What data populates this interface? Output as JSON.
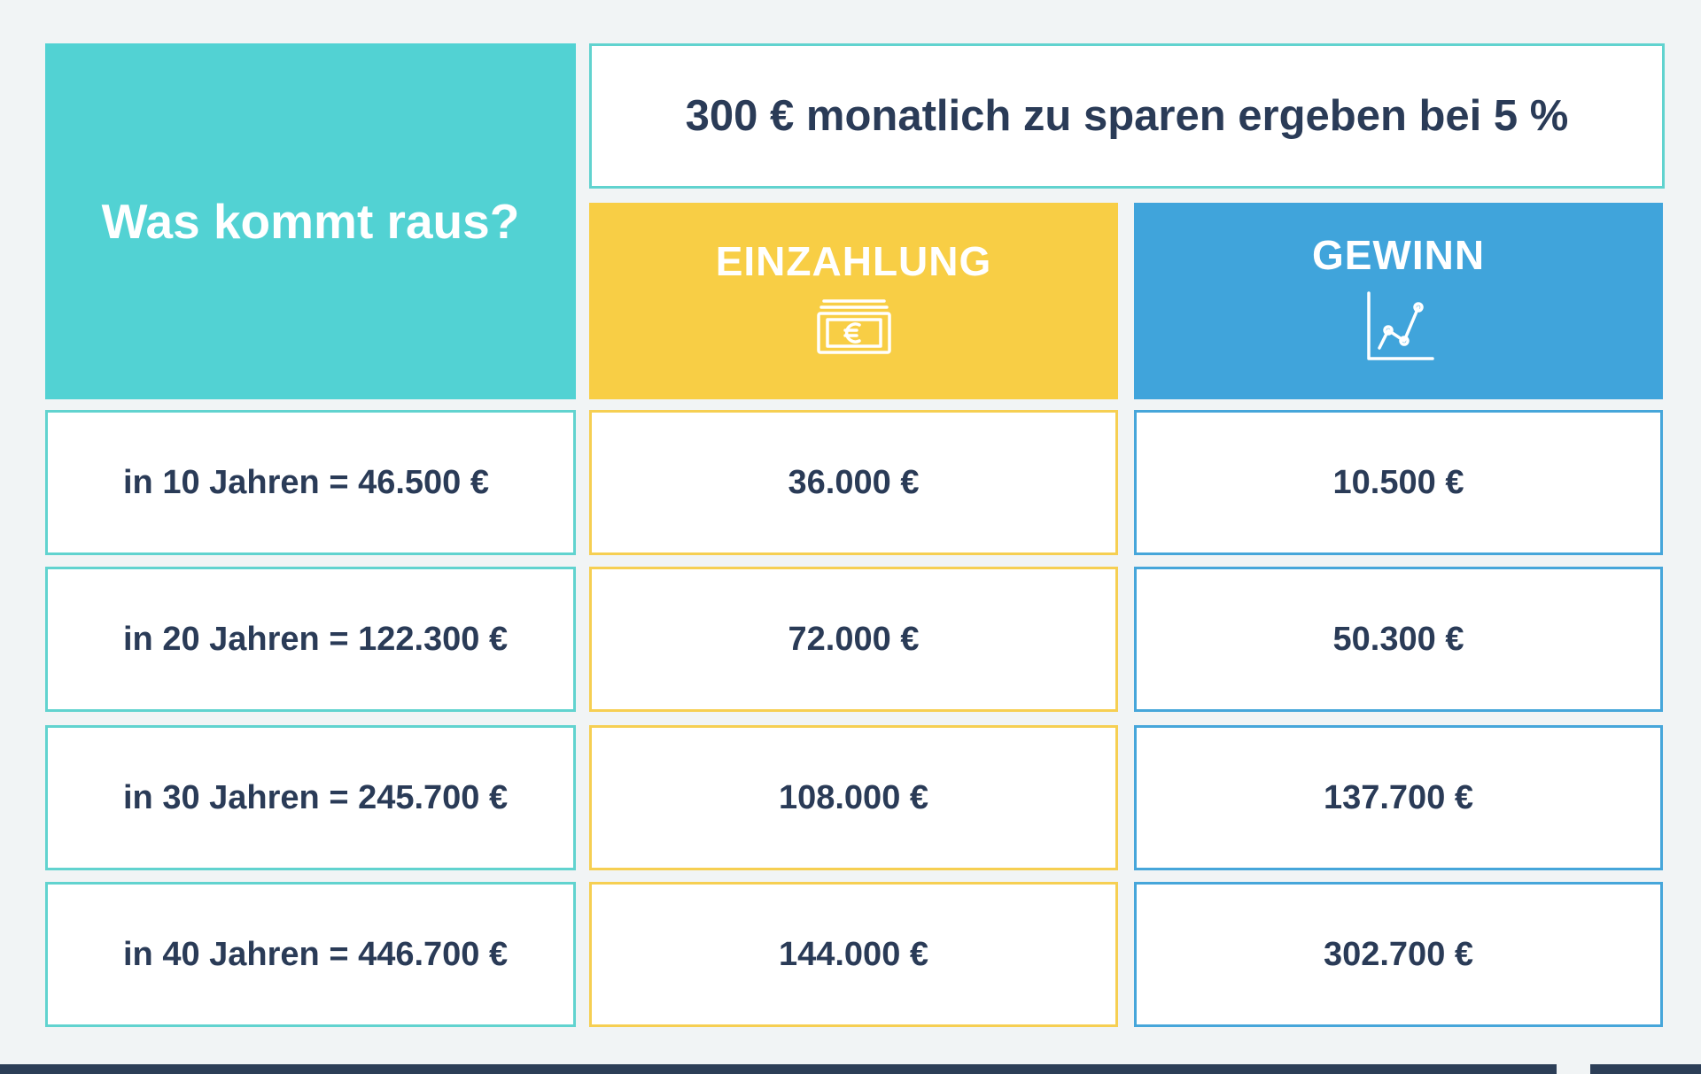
{
  "title": "Was kommt raus?",
  "header": "300 € monatlich zu sparen ergeben bei 5 %",
  "columns": {
    "einzahlung": {
      "label": "EINZAHLUNG",
      "icon": "euro-banknotes-icon"
    },
    "gewinn": {
      "label": "GEWINN",
      "icon": "line-chart-icon"
    }
  },
  "rows": [
    {
      "label": "in 10 Jahren = 46.500 €",
      "einzahlung": "36.000 €",
      "gewinn": "10.500 €"
    },
    {
      "label": "in 20 Jahren = 122.300 €",
      "einzahlung": "72.000 €",
      "gewinn": "50.300 €"
    },
    {
      "label": "in 30 Jahren = 245.700 €",
      "einzahlung": "108.000 €",
      "gewinn": "137.700 €"
    },
    {
      "label": "in 40 Jahren = 446.700 €",
      "einzahlung": "144.000 €",
      "gewinn": "302.700 €"
    }
  ],
  "colors": {
    "title_bg": "#52d2d3",
    "einzahlung_bg": "#f8ce45",
    "gewinn_bg": "#40a4db",
    "text": "#2a3b57",
    "background": "#f1f4f5",
    "footer_bar": "#2c3e57"
  }
}
